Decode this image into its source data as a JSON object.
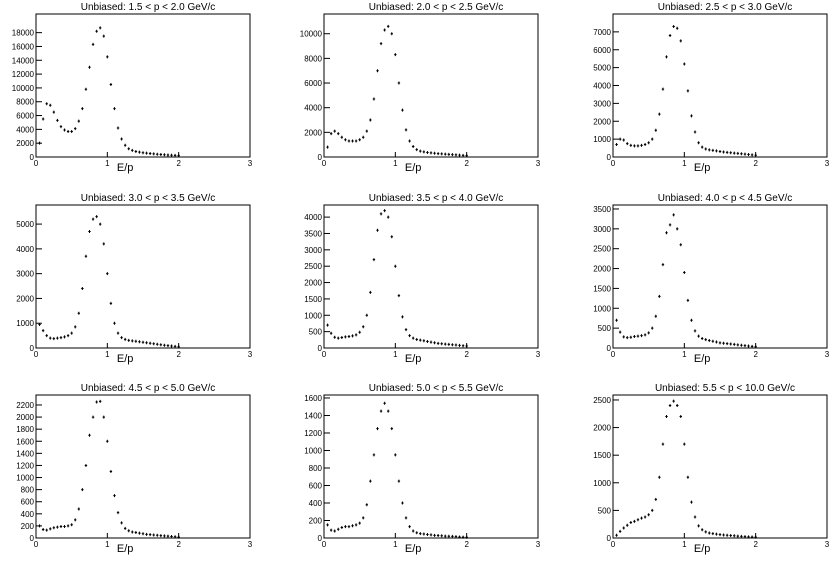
{
  "chart_data": [
    {
      "type": "scatter",
      "title": "Unbiased: 1.5 < p < 2.0 GeV/c",
      "x_label": "E/p",
      "color": "#000000",
      "x": [
        0.05,
        0.1,
        0.15,
        0.2,
        0.25,
        0.3,
        0.35,
        0.4,
        0.45,
        0.5,
        0.55,
        0.6,
        0.65,
        0.7,
        0.75,
        0.8,
        0.85,
        0.9,
        0.95,
        1.0,
        1.05,
        1.1,
        1.15,
        1.2,
        1.25,
        1.3,
        1.35,
        1.4,
        1.45,
        1.5,
        1.55,
        1.6,
        1.65,
        1.7,
        1.75,
        1.8,
        1.85,
        1.9,
        1.95,
        2.0
      ],
      "values": [
        2000,
        5500,
        7700,
        7500,
        6500,
        5300,
        4400,
        3900,
        3700,
        3700,
        4100,
        5200,
        7000,
        9800,
        13000,
        16300,
        18200,
        18700,
        17500,
        14500,
        10500,
        7000,
        4200,
        2600,
        1700,
        1200,
        950,
        800,
        700,
        620,
        560,
        500,
        450,
        400,
        360,
        320,
        290,
        260,
        230,
        200
      ],
      "xlim": [
        0,
        3
      ],
      "xticks": [
        0,
        1,
        2,
        3
      ],
      "ylim": [
        0,
        20700
      ],
      "yticks": [
        0,
        2000,
        4000,
        6000,
        8000,
        10000,
        12000,
        14000,
        16000,
        18000
      ]
    },
    {
      "type": "scatter",
      "title": "Unbiased: 2.0 < p < 2.5 GeV/c",
      "x_label": "E/p",
      "color": "#000000",
      "x": [
        0.05,
        0.1,
        0.15,
        0.2,
        0.25,
        0.3,
        0.35,
        0.4,
        0.45,
        0.5,
        0.55,
        0.6,
        0.65,
        0.7,
        0.75,
        0.8,
        0.85,
        0.9,
        0.95,
        1.0,
        1.05,
        1.1,
        1.15,
        1.2,
        1.25,
        1.3,
        1.35,
        1.4,
        1.45,
        1.5,
        1.55,
        1.6,
        1.65,
        1.7,
        1.75,
        1.8,
        1.85,
        1.9,
        1.95,
        2.0
      ],
      "values": [
        800,
        1900,
        2100,
        1900,
        1600,
        1400,
        1300,
        1300,
        1300,
        1400,
        1600,
        2100,
        3000,
        4700,
        7000,
        9200,
        10300,
        10600,
        10000,
        8300,
        6000,
        3800,
        2200,
        1300,
        850,
        600,
        480,
        420,
        370,
        330,
        300,
        270,
        250,
        230,
        210,
        190,
        170,
        150,
        130,
        110
      ],
      "xlim": [
        0,
        3
      ],
      "xticks": [
        0,
        1,
        2,
        3
      ],
      "ylim": [
        0,
        11600
      ],
      "yticks": [
        0,
        2000,
        4000,
        6000,
        8000,
        10000
      ]
    },
    {
      "type": "scatter",
      "title": "Unbiased: 2.5 < p < 3.0 GeV/c",
      "x_label": "E/p",
      "color": "#000000",
      "x": [
        0.05,
        0.1,
        0.15,
        0.2,
        0.25,
        0.3,
        0.35,
        0.4,
        0.45,
        0.5,
        0.55,
        0.6,
        0.65,
        0.7,
        0.75,
        0.8,
        0.85,
        0.9,
        0.95,
        1.0,
        1.05,
        1.1,
        1.15,
        1.2,
        1.25,
        1.3,
        1.35,
        1.4,
        1.45,
        1.5,
        1.55,
        1.6,
        1.65,
        1.7,
        1.75,
        1.8,
        1.85,
        1.9,
        1.95,
        2.0
      ],
      "values": [
        700,
        1000,
        950,
        750,
        650,
        620,
        620,
        650,
        700,
        800,
        1000,
        1500,
        2400,
        3800,
        5600,
        6800,
        7300,
        7200,
        6500,
        5200,
        3700,
        2300,
        1400,
        800,
        550,
        450,
        400,
        370,
        340,
        310,
        280,
        260,
        240,
        220,
        200,
        180,
        160,
        140,
        120,
        100
      ],
      "xlim": [
        0,
        3
      ],
      "xticks": [
        0,
        1,
        2,
        3
      ],
      "ylim": [
        0,
        8000
      ],
      "yticks": [
        0,
        1000,
        2000,
        3000,
        4000,
        5000,
        6000,
        7000
      ]
    },
    {
      "type": "scatter",
      "title": "Unbiased: 3.0 < p < 3.5 GeV/c",
      "x_label": "E/p",
      "color": "#000000",
      "x": [
        0.05,
        0.1,
        0.15,
        0.2,
        0.25,
        0.3,
        0.35,
        0.4,
        0.45,
        0.5,
        0.55,
        0.6,
        0.65,
        0.7,
        0.75,
        0.8,
        0.85,
        0.9,
        0.95,
        1.0,
        1.05,
        1.1,
        1.15,
        1.2,
        1.25,
        1.3,
        1.35,
        1.4,
        1.45,
        1.5,
        1.55,
        1.6,
        1.65,
        1.7,
        1.75,
        1.8,
        1.85,
        1.9,
        1.95,
        2.0
      ],
      "values": [
        950,
        700,
        500,
        400,
        380,
        400,
        420,
        450,
        500,
        600,
        850,
        1400,
        2400,
        3700,
        4700,
        5200,
        5300,
        5000,
        4200,
        3000,
        1800,
        1000,
        600,
        420,
        350,
        310,
        290,
        270,
        250,
        230,
        210,
        190,
        170,
        150,
        130,
        110,
        95,
        80,
        65,
        50
      ],
      "xlim": [
        0,
        3
      ],
      "xticks": [
        0,
        1,
        2,
        3
      ],
      "ylim": [
        0,
        5770
      ],
      "yticks": [
        0,
        1000,
        2000,
        3000,
        4000,
        5000
      ]
    },
    {
      "type": "scatter",
      "title": "Unbiased: 3.5 < p < 4.0 GeV/c",
      "x_label": "E/p",
      "color": "#000000",
      "x": [
        0.05,
        0.1,
        0.15,
        0.2,
        0.25,
        0.3,
        0.35,
        0.4,
        0.45,
        0.5,
        0.55,
        0.6,
        0.65,
        0.7,
        0.75,
        0.8,
        0.85,
        0.9,
        0.95,
        1.0,
        1.05,
        1.1,
        1.15,
        1.2,
        1.25,
        1.3,
        1.35,
        1.4,
        1.45,
        1.5,
        1.55,
        1.6,
        1.65,
        1.7,
        1.75,
        1.8,
        1.85,
        1.9,
        1.95,
        2.0
      ],
      "values": [
        700,
        450,
        330,
        300,
        320,
        340,
        350,
        370,
        400,
        480,
        650,
        1000,
        1700,
        2700,
        3600,
        4100,
        4200,
        4000,
        3400,
        2500,
        1600,
        950,
        560,
        380,
        300,
        260,
        240,
        220,
        200,
        180,
        160,
        140,
        130,
        120,
        110,
        100,
        90,
        80,
        70,
        60
      ],
      "xlim": [
        0,
        3
      ],
      "xticks": [
        0,
        1,
        2,
        3
      ],
      "ylim": [
        0,
        4370
      ],
      "yticks": [
        0,
        500,
        1000,
        1500,
        2000,
        2500,
        3000,
        3500,
        4000
      ]
    },
    {
      "type": "scatter",
      "title": "Unbiased: 4.0 < p < 4.5 GeV/c",
      "x_label": "E/p",
      "color": "#000000",
      "x": [
        0.05,
        0.1,
        0.15,
        0.2,
        0.25,
        0.3,
        0.35,
        0.4,
        0.45,
        0.5,
        0.55,
        0.6,
        0.65,
        0.7,
        0.75,
        0.8,
        0.85,
        0.9,
        0.95,
        1.0,
        1.05,
        1.1,
        1.15,
        1.2,
        1.25,
        1.3,
        1.35,
        1.4,
        1.45,
        1.5,
        1.55,
        1.6,
        1.65,
        1.7,
        1.75,
        1.8,
        1.85,
        1.9,
        1.95,
        2.0
      ],
      "values": [
        700,
        400,
        280,
        260,
        270,
        290,
        300,
        310,
        330,
        380,
        500,
        800,
        1300,
        2100,
        2900,
        3100,
        3350,
        3000,
        2600,
        1900,
        1200,
        700,
        430,
        300,
        240,
        210,
        190,
        170,
        150,
        130,
        120,
        110,
        100,
        90,
        80,
        70,
        60,
        50,
        40,
        30
      ],
      "xlim": [
        0,
        3
      ],
      "xticks": [
        0,
        1,
        2,
        3
      ],
      "ylim": [
        0,
        3600
      ],
      "yticks": [
        0,
        500,
        1000,
        1500,
        2000,
        2500,
        3000,
        3500
      ]
    },
    {
      "type": "scatter",
      "title": "Unbiased: 4.5 < p < 5.0 GeV/c",
      "x_label": "E/p",
      "color": "#000000",
      "x": [
        0.05,
        0.1,
        0.15,
        0.2,
        0.25,
        0.3,
        0.35,
        0.4,
        0.45,
        0.5,
        0.55,
        0.6,
        0.65,
        0.7,
        0.75,
        0.8,
        0.85,
        0.9,
        0.95,
        1.0,
        1.05,
        1.1,
        1.15,
        1.2,
        1.25,
        1.3,
        1.35,
        1.4,
        1.45,
        1.5,
        1.55,
        1.6,
        1.65,
        1.7,
        1.75,
        1.8,
        1.85,
        1.9,
        1.95,
        2.0
      ],
      "values": [
        200,
        140,
        130,
        150,
        170,
        180,
        190,
        190,
        200,
        220,
        300,
        480,
        800,
        1200,
        1700,
        2000,
        2250,
        2260,
        2000,
        1600,
        1100,
        700,
        420,
        250,
        160,
        120,
        100,
        90,
        80,
        70,
        60,
        55,
        50,
        45,
        40,
        35,
        30,
        25,
        20,
        15
      ],
      "xlim": [
        0,
        3
      ],
      "xticks": [
        0,
        1,
        2,
        3
      ],
      "ylim": [
        0,
        2365
      ],
      "yticks": [
        0,
        200,
        400,
        600,
        800,
        1000,
        1200,
        1400,
        1600,
        1800,
        2000,
        2200
      ]
    },
    {
      "type": "scatter",
      "title": "Unbiased: 5.0 < p < 5.5 GeV/c",
      "x_label": "E/p",
      "color": "#000000",
      "x": [
        0.05,
        0.1,
        0.15,
        0.2,
        0.25,
        0.3,
        0.35,
        0.4,
        0.45,
        0.5,
        0.55,
        0.6,
        0.65,
        0.7,
        0.75,
        0.8,
        0.85,
        0.9,
        0.95,
        1.0,
        1.05,
        1.1,
        1.15,
        1.2,
        1.25,
        1.3,
        1.35,
        1.4,
        1.45,
        1.5,
        1.55,
        1.6,
        1.65,
        1.7,
        1.75,
        1.8,
        1.85,
        1.9,
        1.95,
        2.0
      ],
      "values": [
        150,
        90,
        80,
        100,
        120,
        130,
        130,
        140,
        150,
        170,
        230,
        380,
        650,
        950,
        1250,
        1450,
        1540,
        1450,
        1250,
        950,
        650,
        400,
        230,
        130,
        80,
        60,
        50,
        45,
        40,
        35,
        30,
        28,
        25,
        22,
        20,
        18,
        15,
        12,
        10,
        8
      ],
      "xlim": [
        0,
        3
      ],
      "xticks": [
        0,
        1,
        2,
        3
      ],
      "ylim": [
        0,
        1634
      ],
      "yticks": [
        0,
        200,
        400,
        600,
        800,
        1000,
        1200,
        1400,
        1600
      ]
    },
    {
      "type": "scatter",
      "title": "Unbiased: 5.5 < p < 10.0 GeV/c",
      "x_label": "E/p",
      "color": "#000000",
      "x": [
        0.05,
        0.1,
        0.15,
        0.2,
        0.25,
        0.3,
        0.35,
        0.4,
        0.45,
        0.5,
        0.55,
        0.6,
        0.65,
        0.7,
        0.75,
        0.8,
        0.85,
        0.9,
        0.95,
        1.0,
        1.05,
        1.1,
        1.15,
        1.2,
        1.25,
        1.3,
        1.35,
        1.4,
        1.45,
        1.5,
        1.55,
        1.6,
        1.65,
        1.7,
        1.75,
        1.8,
        1.85,
        1.9,
        1.95,
        2.0
      ],
      "values": [
        50,
        120,
        180,
        230,
        280,
        300,
        330,
        360,
        380,
        420,
        500,
        700,
        1100,
        1700,
        2200,
        2400,
        2480,
        2400,
        2200,
        1700,
        1100,
        650,
        380,
        220,
        150,
        110,
        90,
        80,
        70,
        60,
        55,
        50,
        45,
        40,
        35,
        30,
        25,
        20,
        18,
        15
      ],
      "xlim": [
        0,
        3
      ],
      "xticks": [
        0,
        1,
        2,
        3
      ],
      "ylim": [
        0,
        2590
      ],
      "yticks": [
        0,
        500,
        1000,
        1500,
        2000,
        2500
      ]
    }
  ]
}
